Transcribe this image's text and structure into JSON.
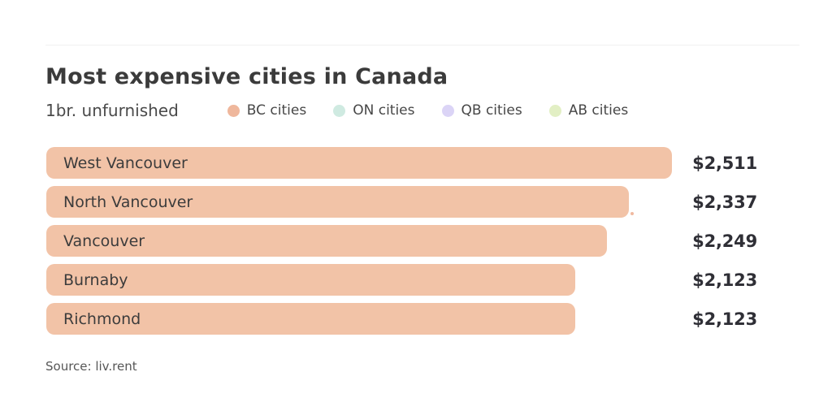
{
  "header": {
    "title": "Most expensive cities in Canada",
    "subtitle": "1br. unfurnished"
  },
  "legend": {
    "items": [
      {
        "label": "BC cities",
        "color": "#efb79c"
      },
      {
        "label": "ON cities",
        "color": "#cfeae1"
      },
      {
        "label": "QB cities",
        "color": "#dbd4f6"
      },
      {
        "label": "AB cities",
        "color": "#e2efc4"
      }
    ]
  },
  "chart_data": {
    "type": "bar",
    "orientation": "horizontal",
    "title": "Most expensive cities in Canada",
    "subtitle": "1br. unfurnished",
    "categories": [
      "West Vancouver",
      "North Vancouver",
      "Vancouver",
      "Burnaby",
      "Richmond"
    ],
    "values": [
      2511,
      2337,
      2249,
      2123,
      2123
    ],
    "value_labels": [
      "$2,511",
      "$2,337",
      "$2,249",
      "$2,123",
      "$2,123"
    ],
    "series_name": "BC cities",
    "bar_color": "#f2c3a7",
    "xlim": [
      0,
      2511
    ],
    "grid": false,
    "legend_position": "top"
  },
  "footer": {
    "source": "Source: liv.rent"
  }
}
